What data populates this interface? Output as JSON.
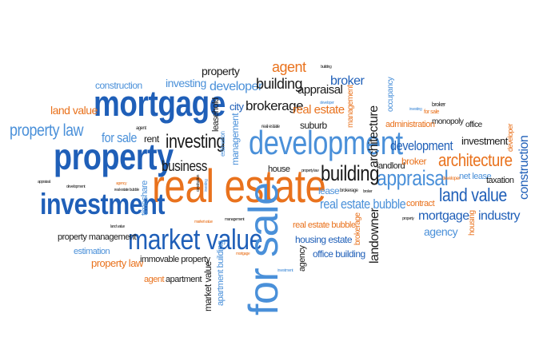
{
  "colors": {
    "dark": "#1a1a1a",
    "blue": "#1f5fb8",
    "light_blue": "#4a90d9",
    "orange": "#e9721d",
    "background": "#ffffff"
  },
  "words": {
    "real_estate_main": "real estate",
    "mortgage_main": "mortgage",
    "property_main": "property",
    "investment_main": "investment",
    "development_main": "development",
    "market_value_main": "market value",
    "for_sale_vertical": "for sale",
    "architecture_right": "architecture",
    "appraisal_right": "appraisal",
    "land_value_right": "land value",
    "building_mid": "building",
    "investing_mid": "investing",
    "business_mid": "business",
    "property_law_left": "property law",
    "for_sale_left": "for sale",
    "land_value_left": "land value",
    "construction_left": "construction",
    "investing_top": "investing",
    "property_top": "property",
    "developer_top": "developer",
    "building_top": "building",
    "agent_top": "agent",
    "appraisal_top": "appraisal",
    "broker_top": "broker",
    "brokerage_top": "brokerage",
    "real_estate_top": "real estate",
    "city_top": "city",
    "suburb_top": "suburb",
    "leasehold_vert": "leasehold",
    "rent_left": "rent",
    "agent_tiny": "agent",
    "house_mid": "house",
    "real_estate_tiny": "real estate",
    "management_vert": "management",
    "estimation_vert": "estimation",
    "architecture_vert": "architecture",
    "landlord": "landlord",
    "broker_mid": "broker",
    "lease": "lease",
    "brokerage_tiny": "brokerage",
    "real_estate_bubble_blue": "real estate bubble",
    "real_estate_bubble_orange": "real estate bubble",
    "housing_estate": "housing estate",
    "office_building": "office building",
    "landowner_vert": "landowner",
    "brokerage_vert": "brokerage",
    "agency_vert": "agency",
    "contract": "contract",
    "mortgage_right": "mortgage",
    "agency_right": "agency",
    "housing_vert": "housing",
    "industry": "industry",
    "investment_right": "investment",
    "development_right": "development",
    "administration": "administration",
    "monopoly": "monopoly",
    "office": "office",
    "occupancy_vert": "occupancy",
    "for_sale_tiny": "for sale",
    "investing_tiny": "investing",
    "broker_right": "broker",
    "net_lease": "net lease",
    "taxation": "taxation",
    "developer_tiny": "developer",
    "construction_vert": "construction",
    "developer_vert": "developer",
    "property_management": "property management",
    "land_value_tiny": "land value",
    "estimation_bottom": "estimation",
    "property_law_bottom": "property law",
    "immovable_property": "immovable property",
    "agent_bottom": "agent",
    "apartment": "apartment",
    "market_value_vert": "market value",
    "apartment_building_vert": "apartment building",
    "timeshare_vert": "timeshare",
    "real_estate_bubble_tiny": "real estate bubble",
    "appraisal_tiny": "appraisal",
    "development_tiny": "development",
    "agency_tiny": "agency",
    "market_value_tiny": "market value",
    "management_tiny": "management",
    "investment_tiny": "investment",
    "mortgage_tiny": "mortgage",
    "building_tiny": "building",
    "management_orange_vert": "management",
    "property_law_tiny": "property law",
    "property_tiny": "property",
    "broker_tiny": "broker",
    "developer_tiny2": "developer",
    "construction_tiny": "construction",
    "investing_tiny2": "investing"
  }
}
